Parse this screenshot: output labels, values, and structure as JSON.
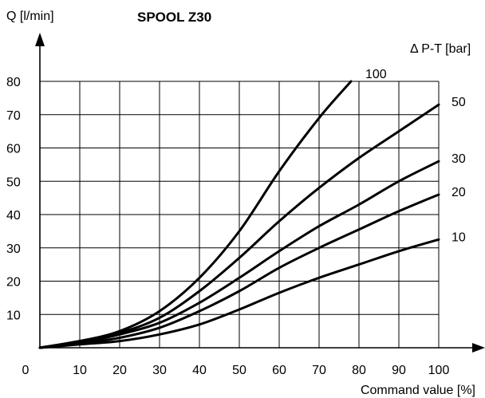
{
  "chart_data": {
    "type": "line",
    "title": "SPOOL Z30",
    "ylabel": "Q [l/min]",
    "xlabel": "Command value [%]",
    "legend_title": "Δ P-T [bar]",
    "legend_placement": "right",
    "grid": true,
    "xlim": [
      0,
      100
    ],
    "ylim": [
      0,
      80
    ],
    "x_ticks": [
      "0",
      "10",
      "20",
      "30",
      "40",
      "50",
      "60",
      "70",
      "80",
      "90",
      "100"
    ],
    "y_ticks": [
      "10",
      "20",
      "30",
      "40",
      "50",
      "60",
      "70",
      "80"
    ],
    "series": [
      {
        "name": "100",
        "x": [
          0,
          10,
          20,
          30,
          40,
          50,
          60,
          70,
          78
        ],
        "y": [
          0,
          2,
          5,
          11,
          21,
          35,
          53,
          69,
          80
        ]
      },
      {
        "name": "50",
        "x": [
          0,
          10,
          20,
          30,
          40,
          50,
          60,
          70,
          80,
          90,
          100
        ],
        "y": [
          0,
          2,
          4.5,
          9,
          17,
          27,
          38,
          48,
          57,
          65,
          73
        ]
      },
      {
        "name": "30",
        "x": [
          0,
          10,
          20,
          30,
          40,
          50,
          60,
          70,
          80,
          90,
          100
        ],
        "y": [
          0,
          1.5,
          4,
          7.5,
          13.5,
          21,
          29,
          36.5,
          43,
          50,
          56
        ]
      },
      {
        "name": "20",
        "x": [
          0,
          10,
          20,
          30,
          40,
          50,
          60,
          70,
          80,
          90,
          100
        ],
        "y": [
          0,
          1.2,
          3,
          6,
          11,
          17,
          24,
          30,
          35.5,
          41,
          46
        ]
      },
      {
        "name": "10",
        "x": [
          0,
          10,
          20,
          30,
          40,
          50,
          60,
          70,
          80,
          90,
          100
        ],
        "y": [
          0,
          1,
          2,
          4,
          7,
          11.5,
          16.5,
          21,
          25,
          29,
          32.5
        ]
      }
    ]
  }
}
